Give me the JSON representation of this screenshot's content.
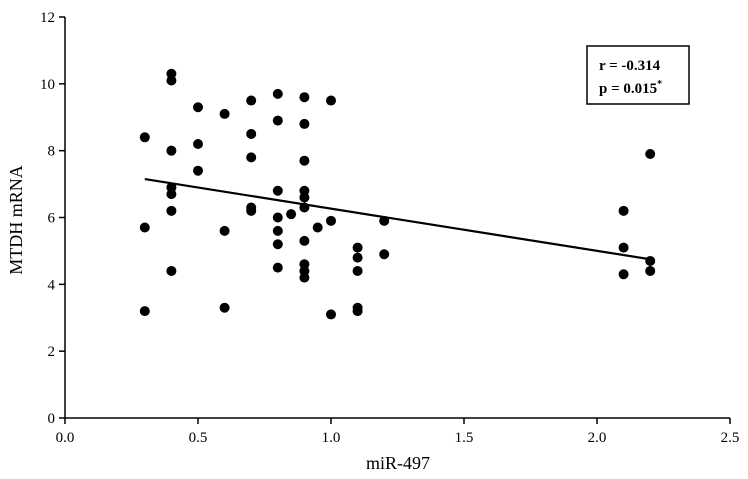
{
  "chart_data": {
    "type": "scatter",
    "title": "",
    "xlabel": "miR-497",
    "ylabel": "MTDH mRNA",
    "xlim": [
      0,
      2.5
    ],
    "ylim": [
      0,
      12
    ],
    "x_ticks": [
      "0.0",
      "0.5",
      "1.0",
      "1.5",
      "2.0",
      "2.5"
    ],
    "y_ticks": [
      "0",
      "2",
      "4",
      "6",
      "8",
      "10",
      "12"
    ],
    "grid": false,
    "legend": "none",
    "marker_color": "#000000",
    "points": [
      {
        "x": 0.3,
        "y": 8.4
      },
      {
        "x": 0.3,
        "y": 5.7
      },
      {
        "x": 0.3,
        "y": 3.2
      },
      {
        "x": 0.4,
        "y": 10.3
      },
      {
        "x": 0.4,
        "y": 10.1
      },
      {
        "x": 0.4,
        "y": 8.0
      },
      {
        "x": 0.4,
        "y": 6.9
      },
      {
        "x": 0.4,
        "y": 6.7
      },
      {
        "x": 0.4,
        "y": 6.2
      },
      {
        "x": 0.4,
        "y": 4.4
      },
      {
        "x": 0.5,
        "y": 9.3
      },
      {
        "x": 0.5,
        "y": 8.2
      },
      {
        "x": 0.5,
        "y": 7.4
      },
      {
        "x": 0.6,
        "y": 9.1
      },
      {
        "x": 0.6,
        "y": 5.6
      },
      {
        "x": 0.6,
        "y": 3.3
      },
      {
        "x": 0.7,
        "y": 9.5
      },
      {
        "x": 0.7,
        "y": 8.5
      },
      {
        "x": 0.7,
        "y": 7.8
      },
      {
        "x": 0.7,
        "y": 6.3
      },
      {
        "x": 0.7,
        "y": 6.2
      },
      {
        "x": 0.8,
        "y": 9.7
      },
      {
        "x": 0.8,
        "y": 8.9
      },
      {
        "x": 0.8,
        "y": 6.8
      },
      {
        "x": 0.8,
        "y": 6.0
      },
      {
        "x": 0.8,
        "y": 5.6
      },
      {
        "x": 0.8,
        "y": 5.2
      },
      {
        "x": 0.8,
        "y": 4.5
      },
      {
        "x": 0.85,
        "y": 6.1
      },
      {
        "x": 0.9,
        "y": 9.6
      },
      {
        "x": 0.9,
        "y": 8.8
      },
      {
        "x": 0.9,
        "y": 7.7
      },
      {
        "x": 0.9,
        "y": 6.8
      },
      {
        "x": 0.9,
        "y": 6.6
      },
      {
        "x": 0.9,
        "y": 6.3
      },
      {
        "x": 0.9,
        "y": 5.3
      },
      {
        "x": 0.9,
        "y": 4.6
      },
      {
        "x": 0.9,
        "y": 4.4
      },
      {
        "x": 0.9,
        "y": 4.2
      },
      {
        "x": 0.95,
        "y": 5.7
      },
      {
        "x": 1.0,
        "y": 9.5
      },
      {
        "x": 1.0,
        "y": 5.9
      },
      {
        "x": 1.0,
        "y": 3.1
      },
      {
        "x": 1.1,
        "y": 5.1
      },
      {
        "x": 1.1,
        "y": 4.8
      },
      {
        "x": 1.1,
        "y": 4.4
      },
      {
        "x": 1.1,
        "y": 3.3
      },
      {
        "x": 1.1,
        "y": 3.2
      },
      {
        "x": 1.2,
        "y": 5.9
      },
      {
        "x": 1.2,
        "y": 4.9
      },
      {
        "x": 2.1,
        "y": 6.2
      },
      {
        "x": 2.1,
        "y": 5.1
      },
      {
        "x": 2.1,
        "y": 4.3
      },
      {
        "x": 2.2,
        "y": 7.9
      },
      {
        "x": 2.2,
        "y": 4.7
      },
      {
        "x": 2.2,
        "y": 4.4
      }
    ],
    "trendline": {
      "x1": 0.3,
      "y1": 7.15,
      "x2": 2.2,
      "y2": 4.75
    },
    "annotation": {
      "line1": "r = -0.314",
      "line2": "p = 0.015",
      "line2_superscript": "*"
    }
  }
}
